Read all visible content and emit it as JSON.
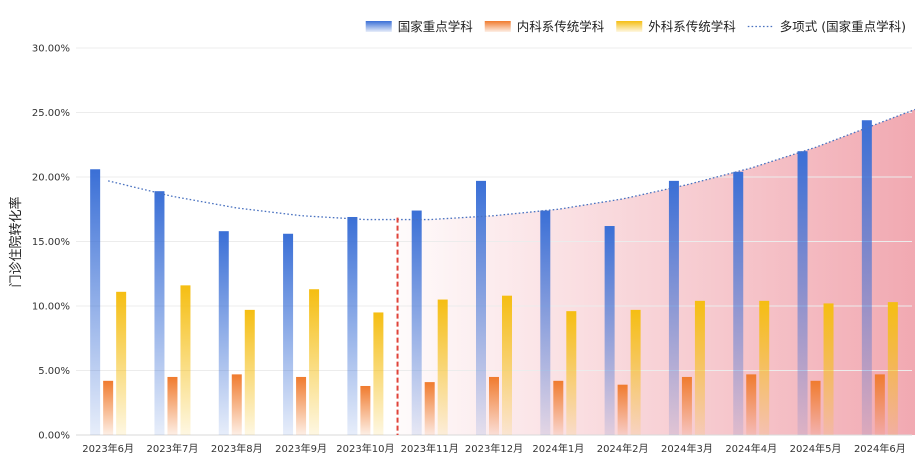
{
  "chart_data": {
    "type": "bar",
    "ylabel": "门诊住院转化率",
    "ylim": [
      0,
      30
    ],
    "y_tick_format": "percent_2dp",
    "yticks": [
      "0.00%",
      "5.00%",
      "10.00%",
      "15.00%",
      "20.00%",
      "25.00%",
      "30.00%"
    ],
    "categories": [
      "2023年6月",
      "2023年7月",
      "2023年8月",
      "2023年9月",
      "2023年10月",
      "2023年11月",
      "2023年12月",
      "2024年1月",
      "2024年2月",
      "2024年3月",
      "2024年4月",
      "2024年5月",
      "2024年6月"
    ],
    "series": [
      {
        "name": "国家重点学科",
        "color": "#3a6fd6",
        "values": [
          20.6,
          18.9,
          15.8,
          15.6,
          16.9,
          17.4,
          19.7,
          17.4,
          16.2,
          19.7,
          20.4,
          22.0,
          24.4
        ]
      },
      {
        "name": "内科系传统学科",
        "color": "#f07b2e",
        "values": [
          4.2,
          4.5,
          4.7,
          4.5,
          3.8,
          4.1,
          4.5,
          4.2,
          3.9,
          4.5,
          4.7,
          4.2,
          4.7
        ]
      },
      {
        "name": "外科系传统学科",
        "color": "#f5be12",
        "values": [
          11.1,
          11.6,
          9.7,
          11.3,
          9.5,
          10.5,
          10.8,
          9.6,
          9.7,
          10.4,
          10.4,
          10.2,
          10.3
        ]
      }
    ],
    "trendline": {
      "name": "多项式 (国家重点学科)",
      "type": "polynomial",
      "color": "#4a72c0",
      "values": [
        19.7,
        18.5,
        17.6,
        17.0,
        16.7,
        16.7,
        17.0,
        17.5,
        18.3,
        19.4,
        20.7,
        22.3,
        24.2
      ]
    },
    "divider_after_category": "2023年10月",
    "divider_color": "#e0433a",
    "shaded_region": "2023年11月 – 2024年6月",
    "shade_color": "#e8707e",
    "legend_position": "top-right",
    "grid": true
  }
}
